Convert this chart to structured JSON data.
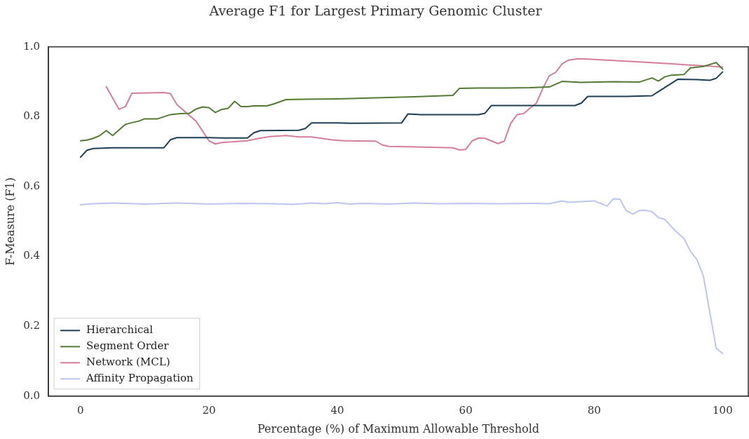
{
  "chart_data": {
    "type": "line",
    "title": "Average F1 for Largest Primary Genomic Cluster",
    "xlabel": "Percentage (%) of Maximum Allowable Threshold",
    "ylabel": "F-Measure (F1)",
    "xlim": [
      -5,
      104
    ],
    "xticks": [
      0,
      20,
      40,
      60,
      80,
      100
    ],
    "ylim": [
      0,
      1
    ],
    "yticks": [
      {
        "value": 0,
        "label": "0.0"
      },
      0.2,
      0.4,
      0.6,
      0.8,
      {
        "value": 1,
        "label": "1.0"
      }
    ],
    "grid": false,
    "legend": "bottom left",
    "marker": "none",
    "line_style": "solid",
    "series": [
      {
        "name": "Hierarchical",
        "color": "#1f3f55",
        "x": [
          0,
          1,
          2,
          5,
          8,
          13,
          14,
          15,
          20,
          22,
          26,
          27,
          28,
          34,
          35,
          36,
          40,
          42,
          50,
          51,
          53,
          62,
          63,
          64,
          70,
          77,
          78,
          79,
          85,
          89,
          90,
          93,
          96,
          98,
          99,
          100
        ],
        "values": [
          0.684,
          0.704,
          0.709,
          0.711,
          0.711,
          0.711,
          0.734,
          0.74,
          0.74,
          0.739,
          0.739,
          0.754,
          0.76,
          0.761,
          0.766,
          0.782,
          0.782,
          0.781,
          0.782,
          0.808,
          0.806,
          0.806,
          0.81,
          0.832,
          0.832,
          0.832,
          0.839,
          0.858,
          0.858,
          0.86,
          0.872,
          0.907,
          0.906,
          0.904,
          0.91,
          0.928
        ]
      },
      {
        "name": "Segment Order",
        "color": "#557a36",
        "x": [
          0,
          1,
          2,
          3,
          4,
          5,
          6,
          7,
          8,
          9,
          10,
          12,
          14,
          15,
          17,
          18,
          19,
          20,
          21,
          22,
          23,
          24,
          25,
          26,
          27,
          29,
          30,
          32,
          35,
          40,
          44,
          48,
          52,
          58,
          59,
          62,
          66,
          70,
          73,
          75,
          78,
          83,
          87,
          89,
          90,
          91,
          92,
          94,
          95,
          97,
          99,
          100
        ],
        "values": [
          0.731,
          0.733,
          0.738,
          0.746,
          0.76,
          0.746,
          0.762,
          0.778,
          0.783,
          0.787,
          0.794,
          0.794,
          0.806,
          0.808,
          0.81,
          0.822,
          0.828,
          0.826,
          0.812,
          0.821,
          0.824,
          0.844,
          0.829,
          0.829,
          0.831,
          0.831,
          0.836,
          0.849,
          0.85,
          0.851,
          0.853,
          0.855,
          0.857,
          0.861,
          0.881,
          0.882,
          0.882,
          0.883,
          0.885,
          0.901,
          0.898,
          0.9,
          0.899,
          0.911,
          0.902,
          0.914,
          0.919,
          0.921,
          0.94,
          0.944,
          0.955,
          0.936
        ]
      },
      {
        "name": "Network (MCL)",
        "color": "#d47f9a",
        "x": [
          4,
          6,
          7,
          8,
          13,
          14,
          15,
          16,
          18,
          20,
          21,
          22,
          26,
          27.5,
          29.5,
          32,
          34,
          36,
          39,
          41,
          46,
          47,
          48,
          51,
          58,
          59,
          60,
          61,
          62,
          63,
          65,
          66,
          67,
          68,
          69,
          70,
          71,
          72,
          73,
          74,
          75,
          76,
          77.5,
          79,
          83,
          87,
          92.5,
          94,
          96,
          100
        ],
        "values": [
          0.886,
          0.821,
          0.829,
          0.867,
          0.869,
          0.866,
          0.835,
          0.819,
          0.787,
          0.731,
          0.722,
          0.726,
          0.731,
          0.737,
          0.743,
          0.746,
          0.742,
          0.742,
          0.734,
          0.731,
          0.73,
          0.719,
          0.715,
          0.714,
          0.711,
          0.705,
          0.706,
          0.731,
          0.739,
          0.738,
          0.723,
          0.73,
          0.781,
          0.806,
          0.809,
          0.824,
          0.839,
          0.881,
          0.917,
          0.927,
          0.951,
          0.962,
          0.966,
          0.965,
          0.961,
          0.957,
          0.951,
          0.949,
          0.947,
          0.942
        ]
      },
      {
        "name": "Affinity Propagation",
        "color": "#bcc6ee",
        "x": [
          0,
          2,
          5,
          10,
          15,
          20,
          25,
          30,
          33,
          36,
          38,
          40,
          42,
          44,
          48,
          52,
          56,
          60,
          65,
          70,
          73,
          75,
          76,
          78,
          80,
          82,
          83,
          84,
          85,
          86,
          87,
          88,
          89,
          90,
          91,
          92.6,
          94,
          95,
          96,
          97,
          99,
          100
        ],
        "values": [
          0.548,
          0.551,
          0.553,
          0.55,
          0.553,
          0.55,
          0.552,
          0.551,
          0.549,
          0.553,
          0.551,
          0.554,
          0.55,
          0.552,
          0.55,
          0.553,
          0.551,
          0.552,
          0.551,
          0.552,
          0.551,
          0.559,
          0.555,
          0.557,
          0.559,
          0.544,
          0.565,
          0.564,
          0.531,
          0.521,
          0.531,
          0.532,
          0.528,
          0.511,
          0.506,
          0.474,
          0.451,
          0.414,
          0.391,
          0.344,
          0.137,
          0.122
        ]
      }
    ]
  }
}
